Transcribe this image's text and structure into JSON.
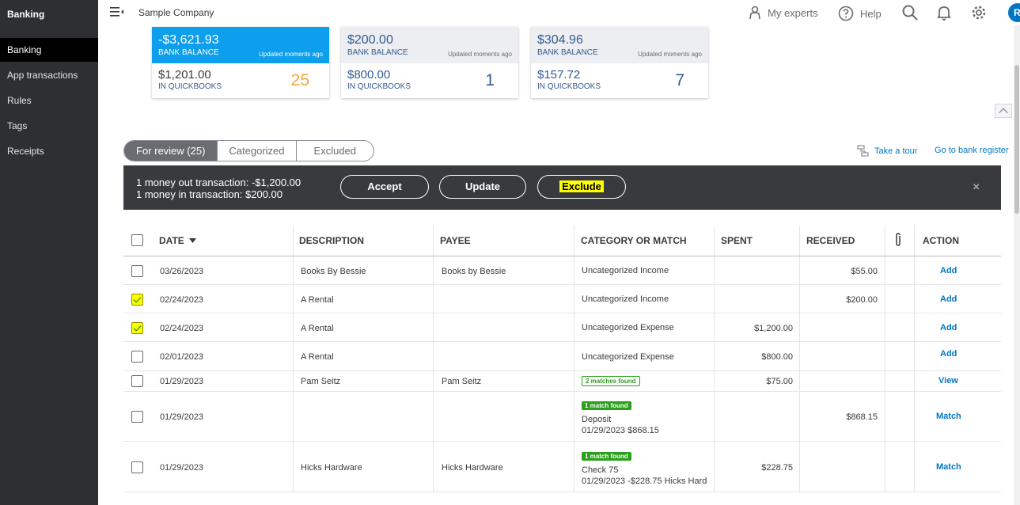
{
  "sidebar": {
    "title": "Banking",
    "items": [
      {
        "label": "Banking"
      },
      {
        "label": "App transactions"
      },
      {
        "label": "Rules"
      },
      {
        "label": "Tags"
      },
      {
        "label": "Receipts"
      }
    ]
  },
  "topbar": {
    "company": "Sample Company",
    "my_experts": "My experts",
    "help": "Help",
    "avatar_initial": "R"
  },
  "cards": [
    {
      "bank_balance": "-$3,621.93",
      "bank_label": "BANK BALANCE",
      "updated": "Updated moments ago",
      "qb_balance": "$1,201.00",
      "qb_label": "IN QUICKBOOKS",
      "count": "25"
    },
    {
      "bank_balance": "$200.00",
      "bank_label": "BANK BALANCE",
      "updated": "Updated moments ago",
      "qb_balance": "$800.00",
      "qb_label": "IN QUICKBOOKS",
      "count": "1"
    },
    {
      "bank_balance": "$304.96",
      "bank_label": "BANK BALANCE",
      "updated": "Updated moments ago",
      "qb_balance": "$157.72",
      "qb_label": "IN QUICKBOOKS",
      "count": "7"
    }
  ],
  "tabs": [
    {
      "label": "For review (25)"
    },
    {
      "label": "Categorized"
    },
    {
      "label": "Excluded"
    }
  ],
  "links": {
    "take_tour": "Take a tour",
    "bank_register": "Go to bank register"
  },
  "batch": {
    "line1": "1 money out transaction: -$1,200.00",
    "line2": "1 money in transaction: $200.00",
    "accept": "Accept",
    "update": "Update",
    "exclude": "Exclude",
    "close": "×"
  },
  "table": {
    "headers": {
      "date": "DATE",
      "description": "DESCRIPTION",
      "payee": "PAYEE",
      "category": "CATEGORY OR MATCH",
      "spent": "SPENT",
      "received": "RECEIVED",
      "action": "ACTION"
    },
    "rows": [
      {
        "date": "03/26/2023",
        "description": "Books By Bessie",
        "payee": "Books by Bessie",
        "category": "Uncategorized Income",
        "spent": "",
        "received": "$55.00",
        "action": "Add",
        "checked": false
      },
      {
        "date": "02/24/2023",
        "description": "A Rental",
        "payee": "",
        "category": "Uncategorized Income",
        "spent": "",
        "received": "$200.00",
        "action": "Add",
        "checked": true
      },
      {
        "date": "02/24/2023",
        "description": "A Rental",
        "payee": "",
        "category": "Uncategorized Expense",
        "spent": "$1,200.00",
        "received": "",
        "action": "Add",
        "checked": true
      },
      {
        "date": "02/01/2023",
        "description": "A Rental",
        "payee": "",
        "category": "Uncategorized Expense",
        "spent": "$800.00",
        "received": "",
        "action": "Add",
        "checked": false
      },
      {
        "date": "01/29/2023",
        "description": "Pam Seitz",
        "payee": "Pam Seitz",
        "badge": "2 matches found",
        "spent": "$75.00",
        "received": "",
        "action": "View",
        "checked": false
      },
      {
        "date": "01/29/2023",
        "description": "",
        "payee": "",
        "badge": "1 match found",
        "match_line1": "Deposit",
        "match_line2": "01/29/2023 $868.15",
        "spent": "",
        "received": "$868.15",
        "action": "Match",
        "checked": false
      },
      {
        "date": "01/29/2023",
        "description": "Hicks Hardware",
        "payee": "Hicks Hardware",
        "badge": "1 match found",
        "match_line1": "Check 75",
        "match_line2": "01/29/2023 -$228.75 Hicks Hard",
        "spent": "$228.75",
        "received": "",
        "action": "Match",
        "checked": false
      }
    ]
  }
}
